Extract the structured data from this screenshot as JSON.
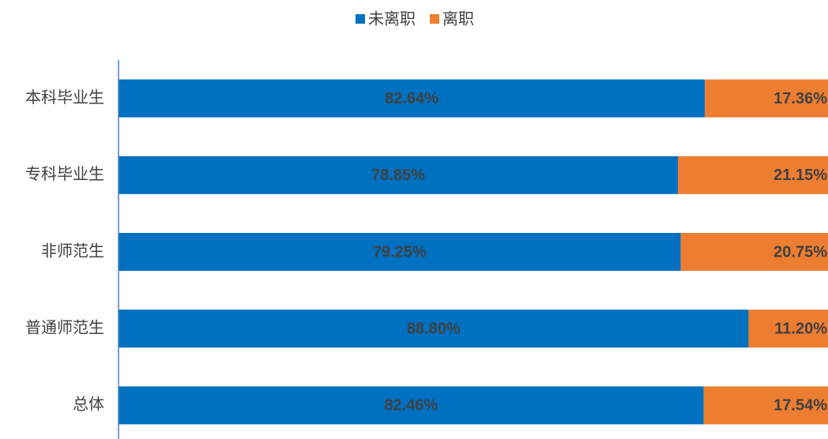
{
  "chart_data": {
    "type": "stacked-bar-horizontal",
    "categories": [
      "本科毕业生",
      "专科毕业生",
      "非师范生",
      "普通师范生",
      "总体"
    ],
    "series": [
      {
        "name": "未离职",
        "color": "#0070c0",
        "values": [
          82.64,
          78.85,
          79.25,
          88.8,
          82.46
        ],
        "value_labels": [
          "82.64%",
          "78.85%",
          "79.25%",
          "88.80%",
          "82.46%"
        ]
      },
      {
        "name": "离职",
        "color": "#ed7d31",
        "values": [
          17.36,
          21.15,
          20.75,
          11.2,
          17.54
        ],
        "value_labels": [
          "17.36%",
          "21.15%",
          "20.75%",
          "11.20%",
          "17.54%"
        ]
      }
    ],
    "xlim": [
      0,
      100
    ],
    "legend": "top"
  }
}
